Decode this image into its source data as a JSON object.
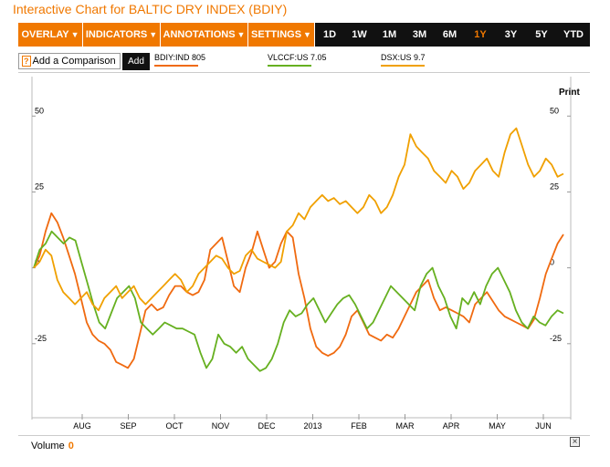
{
  "title": "Interactive Chart for BALTIC DRY INDEX (BDIY)",
  "toolbar": {
    "menus": [
      {
        "label": "OVERLAY"
      },
      {
        "label": "INDICATORS"
      },
      {
        "label": "ANNOTATIONS"
      },
      {
        "label": "SETTINGS"
      }
    ],
    "ranges": [
      "1D",
      "1W",
      "1M",
      "3M",
      "6M",
      "1Y",
      "3Y",
      "5Y",
      "YTD"
    ],
    "active_range": "1Y"
  },
  "compare": {
    "label": "Add a Comparison",
    "icon": "?",
    "add_label": "Add"
  },
  "legend": [
    {
      "label": "BDIY:IND 805",
      "color": "#f06a10"
    },
    {
      "label": "VLCCF:US 7.05",
      "color": "#66b020"
    },
    {
      "label": "DSX:US 9.7",
      "color": "#f0a000"
    }
  ],
  "print_label": "Print",
  "volume": {
    "label": "Volume",
    "value": "0"
  },
  "close_label": "×",
  "chart_data": {
    "type": "line",
    "x_ticks": [
      "AUG",
      "SEP",
      "OCT",
      "NOV",
      "DEC",
      "2013",
      "FEB",
      "MAR",
      "APR",
      "MAY",
      "JUN"
    ],
    "y_ticks": [
      "50",
      "25",
      "0",
      "-25"
    ],
    "ylim": [
      -50,
      63
    ],
    "grid": false,
    "series": [
      {
        "name": "BDIY:IND 805",
        "color": "#f06a10",
        "values": [
          0,
          4,
          12,
          18,
          15,
          10,
          4,
          -2,
          -10,
          -18,
          -22,
          -24,
          -25,
          -27,
          -31,
          -32,
          -33,
          -30,
          -22,
          -14,
          -12,
          -14,
          -13,
          -9,
          -6,
          -6,
          -8,
          -9,
          -8,
          -4,
          6,
          8,
          10,
          2,
          -6,
          -8,
          0,
          5,
          12,
          6,
          0,
          2,
          8,
          12,
          10,
          -2,
          -10,
          -20,
          -26,
          -28,
          -29,
          -28,
          -26,
          -22,
          -16,
          -14,
          -18,
          -22,
          -23,
          -24,
          -22,
          -23,
          -20,
          -16,
          -12,
          -8,
          -6,
          -4,
          -10,
          -14,
          -13,
          -14,
          -15,
          -16,
          -18,
          -12,
          -10,
          -8,
          -11,
          -14,
          -16,
          -17,
          -18,
          -19,
          -20,
          -17,
          -10,
          -2,
          3,
          8,
          11
        ]
      },
      {
        "name": "VLCCF:US 7.05",
        "color": "#66b020",
        "values": [
          0,
          6,
          8,
          12,
          10,
          8,
          10,
          9,
          2,
          -5,
          -12,
          -18,
          -20,
          -15,
          -10,
          -8,
          -6,
          -10,
          -18,
          -20,
          -22,
          -20,
          -18,
          -19,
          -20,
          -20,
          -21,
          -22,
          -28,
          -33,
          -30,
          -22,
          -25,
          -26,
          -28,
          -26,
          -30,
          -32,
          -34,
          -33,
          -30,
          -25,
          -18,
          -14,
          -16,
          -15,
          -12,
          -10,
          -14,
          -18,
          -15,
          -12,
          -10,
          -9,
          -12,
          -16,
          -20,
          -18,
          -14,
          -10,
          -6,
          -8,
          -10,
          -12,
          -14,
          -6,
          -2,
          0,
          -6,
          -10,
          -16,
          -20,
          -10,
          -12,
          -8,
          -12,
          -6,
          -2,
          0,
          -4,
          -8,
          -14,
          -18,
          -20,
          -16,
          -18,
          -19,
          -16,
          -14,
          -15
        ]
      },
      {
        "name": "DSX:US 9.7",
        "color": "#f0a000",
        "values": [
          0,
          2,
          6,
          4,
          -4,
          -8,
          -10,
          -12,
          -10,
          -8,
          -12,
          -14,
          -10,
          -8,
          -6,
          -10,
          -8,
          -6,
          -10,
          -12,
          -10,
          -8,
          -6,
          -4,
          -2,
          -4,
          -8,
          -6,
          -2,
          0,
          2,
          4,
          3,
          0,
          -2,
          -1,
          4,
          6,
          3,
          2,
          1,
          0,
          2,
          12,
          14,
          18,
          16,
          20,
          22,
          24,
          22,
          23,
          21,
          22,
          20,
          18,
          20,
          24,
          22,
          18,
          20,
          24,
          30,
          34,
          44,
          40,
          38,
          36,
          32,
          30,
          28,
          32,
          30,
          26,
          28,
          32,
          34,
          36,
          32,
          30,
          38,
          44,
          46,
          40,
          34,
          30,
          32,
          36,
          34,
          30,
          31
        ]
      }
    ]
  }
}
